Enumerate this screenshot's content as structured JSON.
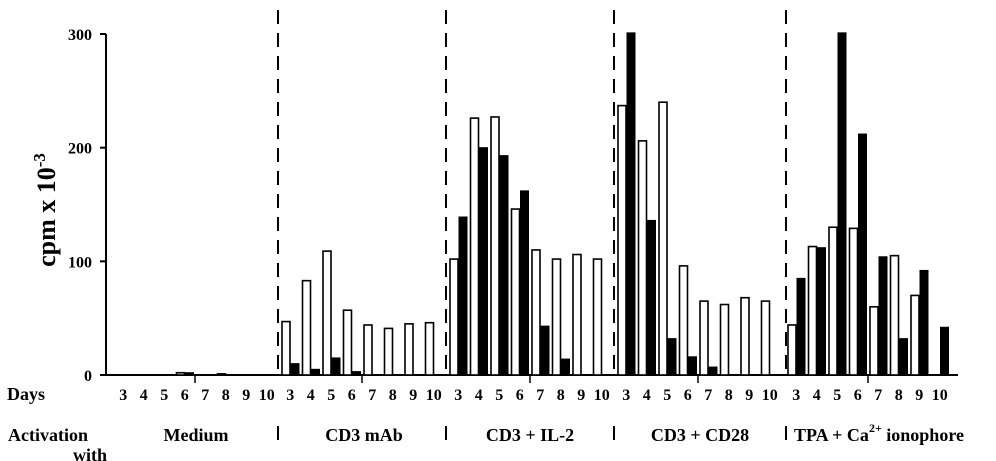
{
  "chart_data": {
    "type": "bar",
    "ylabel": "cpm x 10",
    "ylabel_exponent": "-3",
    "ylim": [
      0,
      300
    ],
    "yticks": [
      0,
      100,
      200,
      300
    ],
    "x_row_label": "Days",
    "activation_label": "Activation",
    "activation_label_line2": "with",
    "days": [
      "3",
      "4",
      "5",
      "6",
      "7",
      "8",
      "9",
      "10"
    ],
    "colors": {
      "open_bar": "#ffffff",
      "filled_bar": "#000000"
    },
    "groups": [
      {
        "label": "Medium",
        "open": [
          0,
          0,
          0,
          2,
          0,
          1,
          0,
          0
        ],
        "filled": [
          0,
          0,
          0,
          2,
          0,
          0,
          0,
          0
        ]
      },
      {
        "label": "CD3 mAb",
        "open": [
          47,
          83,
          109,
          57,
          44,
          41,
          45,
          46
        ],
        "filled": [
          10,
          5,
          15,
          3,
          0,
          0,
          0,
          0
        ]
      },
      {
        "label": "CD3 + IL-2",
        "open": [
          102,
          226,
          227,
          146,
          110,
          102,
          106,
          102
        ],
        "filled": [
          139,
          200,
          193,
          162,
          43,
          14,
          0,
          0
        ]
      },
      {
        "label": "CD3 + CD28",
        "open": [
          237,
          206,
          240,
          96,
          65,
          62,
          68,
          65
        ],
        "filled": [
          301,
          136,
          32,
          16,
          7,
          0,
          0,
          0
        ]
      },
      {
        "label": "TPA + Ca2+ ionophore",
        "label_main": "TPA + Ca",
        "label_sup": "2+",
        "label_tail": " ionophore",
        "open": [
          44,
          113,
          130,
          129,
          60,
          105,
          70,
          0
        ],
        "filled": [
          85,
          112,
          301,
          212,
          104,
          32,
          92,
          42
        ]
      }
    ]
  }
}
